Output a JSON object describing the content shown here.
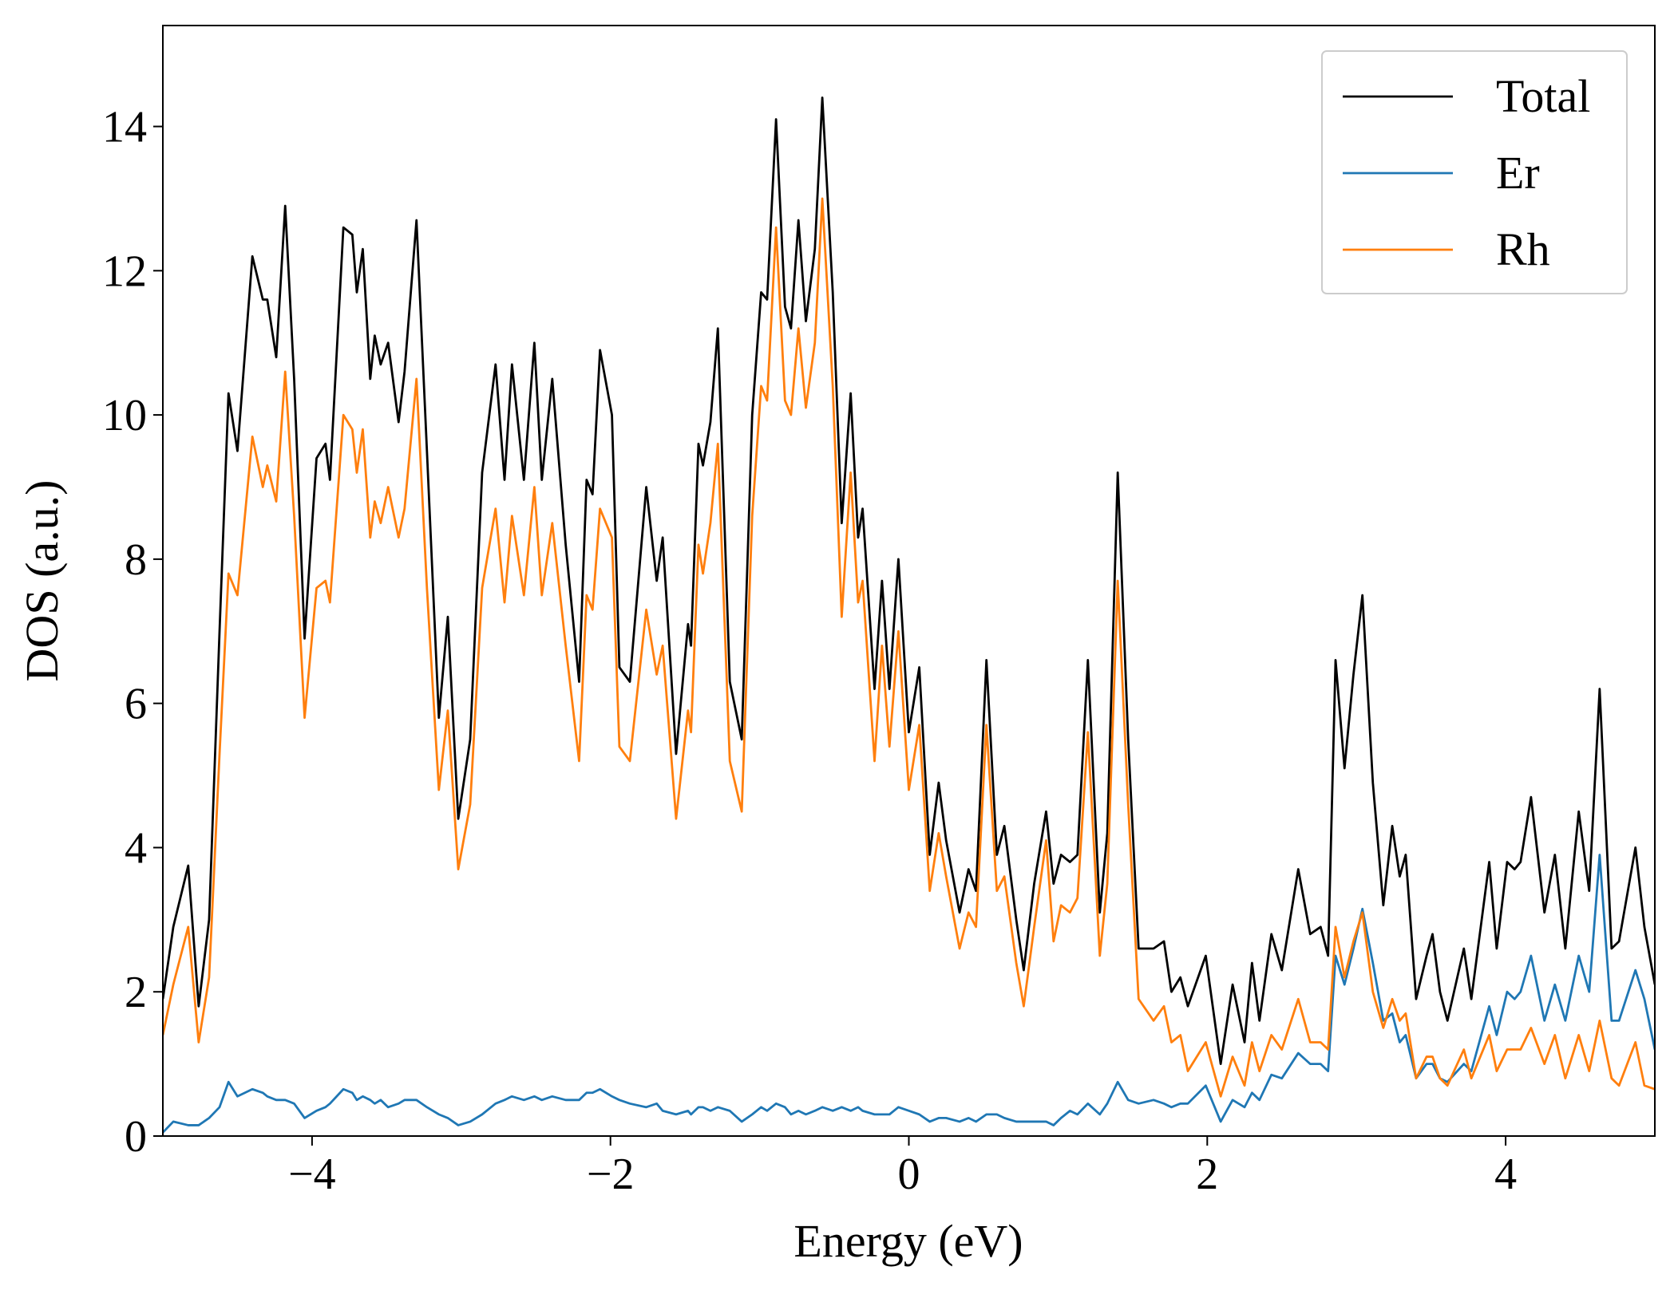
{
  "chart_data": {
    "type": "line",
    "xlabel": "Energy (eV)",
    "ylabel": "DOS (a.u.)",
    "xlim": [
      -5,
      5
    ],
    "ylim": [
      0,
      15.4
    ],
    "xticks": [
      {
        "value": -4,
        "label": "−4"
      },
      {
        "value": -2,
        "label": "−2"
      },
      0,
      2,
      4
    ],
    "yticks": [
      0,
      2,
      4,
      6,
      8,
      10,
      12,
      14
    ],
    "legend": "upper right",
    "x": [
      -5,
      -4.93,
      -4.83,
      -4.76,
      -4.69,
      -4.62,
      -4.56,
      -4.5,
      -4.4,
      -4.33,
      -4.3,
      -4.24,
      -4.18,
      -4.12,
      -4.05,
      -3.97,
      -3.91,
      -3.88,
      -3.79,
      -3.73,
      -3.7,
      -3.66,
      -3.61,
      -3.58,
      -3.54,
      -3.49,
      -3.42,
      -3.38,
      -3.3,
      -3.23,
      -3.15,
      -3.09,
      -3.02,
      -2.94,
      -2.86,
      -2.77,
      -2.71,
      -2.66,
      -2.58,
      -2.51,
      -2.46,
      -2.39,
      -2.3,
      -2.21,
      -2.16,
      -2.12,
      -2.07,
      -1.99,
      -1.94,
      -1.87,
      -1.76,
      -1.69,
      -1.65,
      -1.56,
      -1.48,
      -1.46,
      -1.41,
      -1.38,
      -1.33,
      -1.28,
      -1.2,
      -1.12,
      -1.05,
      -0.99,
      -0.95,
      -0.89,
      -0.83,
      -0.79,
      -0.74,
      -0.69,
      -0.63,
      -0.58,
      -0.51,
      -0.45,
      -0.39,
      -0.34,
      -0.31,
      -0.23,
      -0.18,
      -0.13,
      -0.07,
      0,
      0.07,
      0.14,
      0.2,
      0.25,
      0.34,
      0.4,
      0.45,
      0.52,
      0.59,
      0.64,
      0.72,
      0.77,
      0.84,
      0.92,
      0.97,
      1.02,
      1.08,
      1.13,
      1.2,
      1.28,
      1.33,
      1.4,
      1.47,
      1.54,
      1.64,
      1.71,
      1.76,
      1.82,
      1.87,
      1.99,
      2.09,
      2.17,
      2.25,
      2.3,
      2.35,
      2.43,
      2.5,
      2.61,
      2.69,
      2.76,
      2.81,
      2.86,
      2.92,
      2.98,
      3.04,
      3.11,
      3.18,
      3.24,
      3.29,
      3.33,
      3.4,
      3.47,
      3.51,
      3.56,
      3.61,
      3.72,
      3.77,
      3.89,
      3.94,
      4.01,
      4.06,
      4.1,
      4.17,
      4.26,
      4.33,
      4.4,
      4.49,
      4.56,
      4.63,
      4.71,
      4.76,
      4.87,
      4.93,
      5
    ],
    "series": [
      {
        "name": "Total",
        "color": "#000000",
        "values": [
          1.9,
          2.9,
          3.75,
          1.8,
          3.0,
          7.0,
          10.3,
          9.5,
          12.2,
          11.6,
          11.6,
          10.8,
          12.9,
          10.5,
          6.9,
          9.4,
          9.6,
          9.1,
          12.6,
          12.5,
          11.7,
          12.3,
          10.5,
          11.1,
          10.7,
          11.0,
          9.9,
          10.6,
          12.7,
          9.5,
          5.8,
          7.2,
          4.4,
          5.5,
          9.2,
          10.7,
          9.1,
          10.7,
          9.1,
          11.0,
          9.1,
          10.5,
          8.2,
          6.3,
          9.1,
          8.9,
          10.9,
          10.0,
          6.5,
          6.3,
          9.0,
          7.7,
          8.3,
          5.3,
          7.1,
          6.8,
          9.6,
          9.3,
          9.9,
          11.2,
          6.3,
          5.5,
          10.0,
          11.7,
          11.6,
          14.1,
          11.5,
          11.2,
          12.7,
          11.3,
          12.3,
          14.4,
          11.7,
          8.5,
          10.3,
          8.3,
          8.7,
          6.2,
          7.7,
          6.2,
          8.0,
          5.6,
          6.5,
          3.9,
          4.9,
          4.1,
          3.1,
          3.7,
          3.4,
          6.6,
          3.9,
          4.3,
          3.0,
          2.3,
          3.5,
          4.5,
          3.5,
          3.9,
          3.8,
          3.9,
          6.6,
          3.1,
          4.2,
          9.2,
          5.5,
          2.6,
          2.6,
          2.7,
          2.0,
          2.2,
          1.8,
          2.5,
          1.0,
          2.1,
          1.3,
          2.4,
          1.6,
          2.8,
          2.3,
          3.7,
          2.8,
          2.9,
          2.5,
          6.6,
          5.1,
          6.4,
          7.5,
          4.9,
          3.2,
          4.3,
          3.6,
          3.9,
          1.9,
          2.5,
          2.8,
          2.0,
          1.6,
          2.6,
          1.9,
          3.8,
          2.6,
          3.8,
          3.7,
          3.8,
          4.7,
          3.1,
          3.9,
          2.6,
          4.5,
          3.4,
          6.2,
          2.6,
          2.7,
          4.0,
          2.9,
          2.1
        ]
      },
      {
        "name": "Er",
        "color": "#1f77b4",
        "values": [
          0.05,
          0.2,
          0.15,
          0.15,
          0.25,
          0.4,
          0.75,
          0.55,
          0.65,
          0.6,
          0.55,
          0.5,
          0.5,
          0.45,
          0.25,
          0.35,
          0.4,
          0.45,
          0.65,
          0.6,
          0.5,
          0.55,
          0.5,
          0.45,
          0.5,
          0.4,
          0.45,
          0.5,
          0.5,
          0.4,
          0.3,
          0.25,
          0.15,
          0.2,
          0.3,
          0.45,
          0.5,
          0.55,
          0.5,
          0.55,
          0.5,
          0.55,
          0.5,
          0.5,
          0.6,
          0.6,
          0.65,
          0.55,
          0.5,
          0.45,
          0.4,
          0.45,
          0.35,
          0.3,
          0.35,
          0.3,
          0.4,
          0.4,
          0.35,
          0.4,
          0.35,
          0.2,
          0.3,
          0.4,
          0.35,
          0.45,
          0.4,
          0.3,
          0.35,
          0.3,
          0.35,
          0.4,
          0.35,
          0.4,
          0.35,
          0.4,
          0.35,
          0.3,
          0.3,
          0.3,
          0.4,
          0.35,
          0.3,
          0.2,
          0.25,
          0.25,
          0.2,
          0.25,
          0.2,
          0.3,
          0.3,
          0.25,
          0.2,
          0.2,
          0.2,
          0.2,
          0.15,
          0.25,
          0.35,
          0.3,
          0.45,
          0.3,
          0.45,
          0.75,
          0.5,
          0.45,
          0.5,
          0.45,
          0.4,
          0.45,
          0.45,
          0.7,
          0.2,
          0.5,
          0.4,
          0.6,
          0.5,
          0.85,
          0.8,
          1.15,
          1.0,
          1.0,
          0.9,
          2.5,
          2.1,
          2.6,
          3.15,
          2.4,
          1.6,
          1.7,
          1.3,
          1.4,
          0.8,
          1.0,
          1.0,
          0.8,
          0.75,
          1.0,
          0.9,
          1.8,
          1.4,
          2.0,
          1.9,
          2.0,
          2.5,
          1.6,
          2.1,
          1.6,
          2.5,
          2.0,
          3.9,
          1.6,
          1.6,
          2.3,
          1.9,
          1.2
        ]
      },
      {
        "name": "Rh",
        "color": "#ff7f0e",
        "values": [
          1.4,
          2.1,
          2.9,
          1.3,
          2.2,
          5.3,
          7.8,
          7.5,
          9.7,
          9.0,
          9.3,
          8.8,
          10.6,
          8.6,
          5.8,
          7.6,
          7.7,
          7.4,
          10.0,
          9.8,
          9.2,
          9.8,
          8.3,
          8.8,
          8.5,
          9.0,
          8.3,
          8.7,
          10.5,
          7.6,
          4.8,
          5.9,
          3.7,
          4.6,
          7.6,
          8.7,
          7.4,
          8.6,
          7.5,
          9.0,
          7.5,
          8.5,
          6.8,
          5.2,
          7.5,
          7.3,
          8.7,
          8.3,
          5.4,
          5.2,
          7.3,
          6.4,
          6.8,
          4.4,
          5.9,
          5.6,
          8.2,
          7.8,
          8.5,
          9.6,
          5.2,
          4.5,
          8.6,
          10.4,
          10.2,
          12.6,
          10.2,
          10.0,
          11.2,
          10.1,
          11.0,
          13.0,
          10.4,
          7.2,
          9.2,
          7.4,
          7.7,
          5.2,
          6.8,
          5.4,
          7.0,
          4.8,
          5.7,
          3.4,
          4.2,
          3.6,
          2.6,
          3.1,
          2.9,
          5.7,
          3.4,
          3.6,
          2.4,
          1.8,
          2.9,
          4.1,
          2.7,
          3.2,
          3.1,
          3.3,
          5.6,
          2.5,
          3.5,
          7.7,
          4.6,
          1.9,
          1.6,
          1.8,
          1.3,
          1.4,
          0.9,
          1.3,
          0.55,
          1.1,
          0.7,
          1.3,
          0.9,
          1.4,
          1.2,
          1.9,
          1.3,
          1.3,
          1.2,
          2.9,
          2.2,
          2.7,
          3.1,
          2.0,
          1.5,
          1.9,
          1.6,
          1.7,
          0.8,
          1.1,
          1.1,
          0.8,
          0.7,
          1.2,
          0.8,
          1.4,
          0.9,
          1.2,
          1.2,
          1.2,
          1.5,
          1.0,
          1.4,
          0.8,
          1.4,
          0.9,
          1.6,
          0.8,
          0.7,
          1.3,
          0.7,
          0.65
        ]
      }
    ]
  }
}
